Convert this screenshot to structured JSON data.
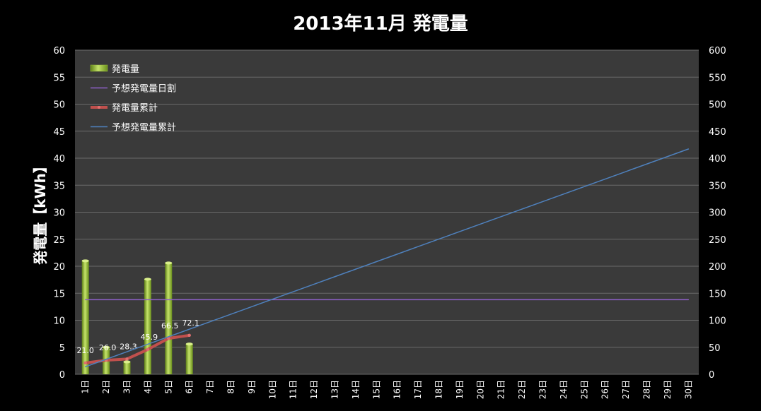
{
  "chart_data": {
    "type": "bar",
    "title": "2013年11月 発電量",
    "ylabel": "発電量【kWh】",
    "xlabel": "",
    "categories": [
      "1日",
      "2日",
      "3日",
      "4日",
      "5日",
      "6日",
      "7日",
      "8日",
      "9日",
      "10日",
      "11日",
      "12日",
      "13日",
      "14日",
      "15日",
      "16日",
      "17日",
      "18日",
      "19日",
      "20日",
      "21日",
      "22日",
      "23日",
      "24日",
      "25日",
      "26日",
      "27日",
      "28日",
      "29日",
      "30日"
    ],
    "ylim": [
      0,
      60
    ],
    "y2lim": [
      0,
      600
    ],
    "yticks": [
      0,
      5,
      10,
      15,
      20,
      25,
      30,
      35,
      40,
      45,
      50,
      55,
      60
    ],
    "y2ticks": [
      0,
      50,
      100,
      150,
      200,
      250,
      300,
      350,
      400,
      450,
      500,
      550,
      600
    ],
    "grid": true,
    "legend_position": "top-left",
    "series": [
      {
        "name": "発電量",
        "kind": "bar",
        "axis": "left",
        "color": "#9dc33a",
        "values": [
          21.0,
          5.0,
          2.3,
          17.6,
          20.6,
          5.6,
          null,
          null,
          null,
          null,
          null,
          null,
          null,
          null,
          null,
          null,
          null,
          null,
          null,
          null,
          null,
          null,
          null,
          null,
          null,
          null,
          null,
          null,
          null,
          null
        ]
      },
      {
        "name": "予想発電量日割",
        "kind": "line",
        "axis": "left",
        "color": "#8e60c8",
        "values": [
          13.8,
          13.8,
          13.8,
          13.8,
          13.8,
          13.8,
          13.8,
          13.8,
          13.8,
          13.8,
          13.8,
          13.8,
          13.8,
          13.8,
          13.8,
          13.8,
          13.8,
          13.8,
          13.8,
          13.8,
          13.8,
          13.8,
          13.8,
          13.8,
          13.8,
          13.8,
          13.8,
          13.8,
          13.8,
          13.8
        ]
      },
      {
        "name": "発電量累計",
        "kind": "line",
        "axis": "right",
        "color": "#c0504d",
        "values": [
          21.0,
          26.0,
          28.3,
          45.9,
          66.5,
          72.1,
          null,
          null,
          null,
          null,
          null,
          null,
          null,
          null,
          null,
          null,
          null,
          null,
          null,
          null,
          null,
          null,
          null,
          null,
          null,
          null,
          null,
          null,
          null,
          null
        ],
        "labels": [
          "21.0",
          "26.0",
          "28.3",
          "45.9",
          "66.5",
          "72.1"
        ]
      },
      {
        "name": "予想発電量累計",
        "kind": "line",
        "axis": "right",
        "color": "#4f81bd",
        "values": [
          13.9,
          27.8,
          41.7,
          55.6,
          69.5,
          83.4,
          97.3,
          111.2,
          125.1,
          139.0,
          152.9,
          166.8,
          180.7,
          194.6,
          208.5,
          222.4,
          236.3,
          250.2,
          264.1,
          278.0,
          291.9,
          305.8,
          319.7,
          333.6,
          347.5,
          361.4,
          375.3,
          389.2,
          403.1,
          417.0
        ]
      }
    ]
  },
  "colors": {
    "background": "#000000",
    "plot_background": "#3a3a3a",
    "grid": "#6a6a6a",
    "text": "#ffffff"
  }
}
